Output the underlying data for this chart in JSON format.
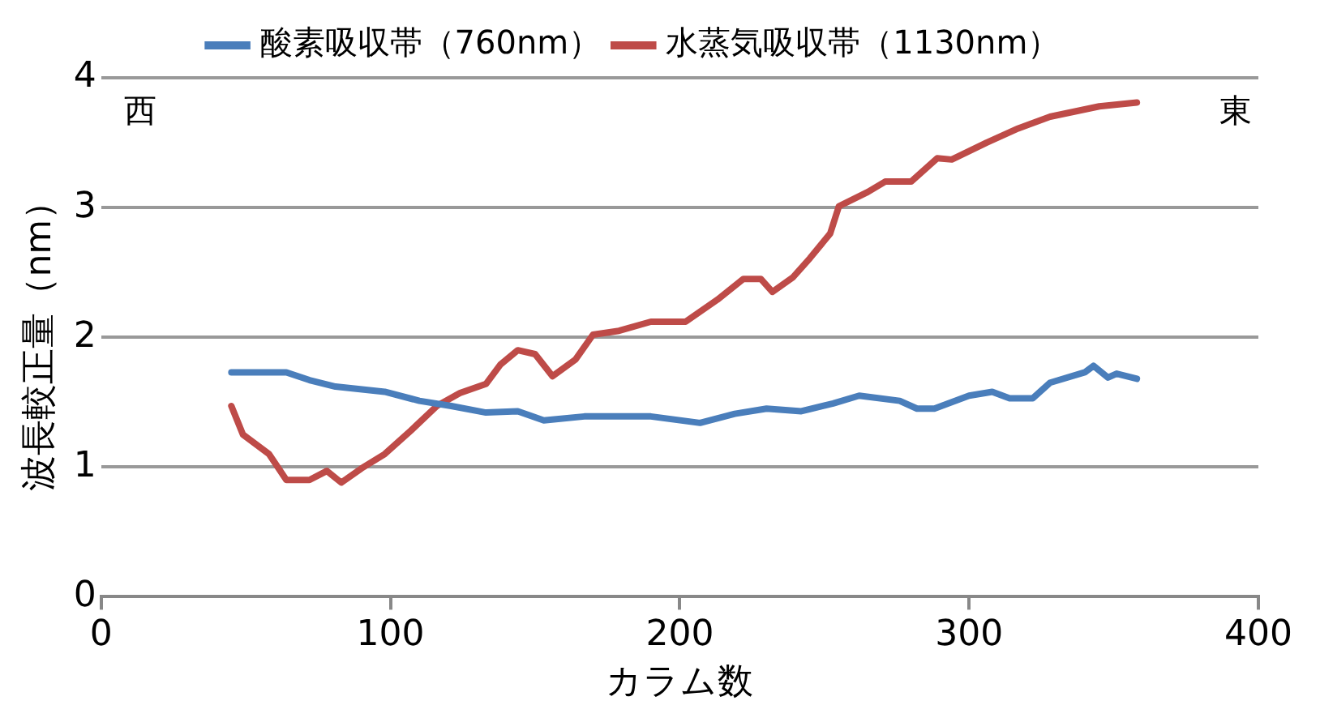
{
  "chart_data": {
    "type": "line",
    "xlabel": "カラム数",
    "ylabel": "波長較正量（nm）",
    "xlim": [
      0,
      400
    ],
    "xticks": [
      0,
      100,
      200,
      300,
      400
    ],
    "ylim": [
      0,
      4
    ],
    "yticks": [
      0,
      1,
      2,
      3,
      4
    ],
    "grid": "y",
    "legend": "top",
    "marker": "none",
    "line_style": "solid",
    "annotations": [
      "西",
      "東"
    ],
    "series": [
      {
        "name": "酸素吸収帯（760nm）",
        "color": "#4a7ebb",
        "x": [
          45,
          64,
          72,
          81,
          98,
          110,
          121,
          133,
          144,
          153,
          167,
          190,
          207,
          219,
          230,
          242,
          253,
          262,
          276,
          282,
          288,
          300,
          308,
          314,
          322,
          328,
          340,
          343,
          348,
          351,
          358
        ],
        "values": [
          1.73,
          1.73,
          1.67,
          1.62,
          1.58,
          1.51,
          1.47,
          1.42,
          1.43,
          1.36,
          1.39,
          1.39,
          1.34,
          1.41,
          1.45,
          1.43,
          1.49,
          1.55,
          1.51,
          1.45,
          1.45,
          1.55,
          1.58,
          1.53,
          1.53,
          1.65,
          1.73,
          1.78,
          1.69,
          1.72,
          1.68
        ]
      },
      {
        "name": "水蒸気吸収帯（1130nm）",
        "color": "#be4b48",
        "x": [
          45,
          49,
          58,
          64,
          72,
          78,
          83,
          90,
          98,
          107,
          116,
          124,
          133,
          138,
          144,
          150,
          156,
          164,
          170,
          179,
          190,
          202,
          213,
          222,
          228,
          232,
          239,
          245,
          252,
          255,
          265,
          271,
          280,
          289,
          294,
          306,
          317,
          328,
          345,
          358
        ],
        "values": [
          1.47,
          1.25,
          1.1,
          0.9,
          0.9,
          0.97,
          0.88,
          0.99,
          1.1,
          1.28,
          1.47,
          1.57,
          1.64,
          1.79,
          1.9,
          1.87,
          1.7,
          1.83,
          2.02,
          2.05,
          2.12,
          2.12,
          2.29,
          2.45,
          2.45,
          2.35,
          2.46,
          2.61,
          2.8,
          3.01,
          3.12,
          3.2,
          3.2,
          3.38,
          3.37,
          3.5,
          3.61,
          3.7,
          3.78,
          3.81
        ]
      }
    ]
  }
}
